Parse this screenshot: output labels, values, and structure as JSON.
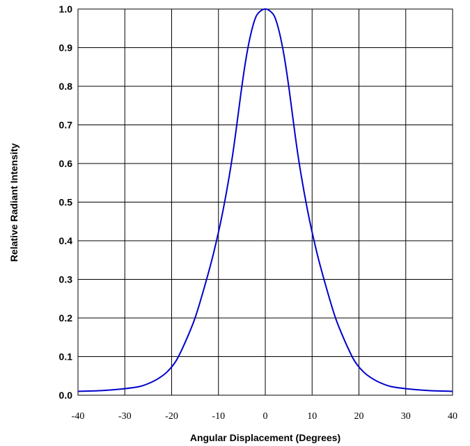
{
  "chart_data": {
    "type": "line",
    "xlabel": "Angular Displacement (Degrees)",
    "ylabel": "Relative Radiant Intensity",
    "xlim": [
      -40,
      40
    ],
    "ylim": [
      0,
      1.0
    ],
    "xticks": [
      "-40",
      "-30",
      "-20",
      "-10",
      "0",
      "10",
      "20",
      "30",
      "40"
    ],
    "yticks": [
      "0.0",
      "0.1",
      "0.2",
      "0.3",
      "0.4",
      "0.5",
      "0.6",
      "0.7",
      "0.8",
      "0.9",
      "1.0"
    ],
    "grid": true,
    "series": [
      {
        "color": "#0000cc",
        "x": [
          -40,
          -35,
          -30,
          -27,
          -25,
          -23,
          -21,
          -19,
          -17,
          -15,
          -13,
          -11,
          -9,
          -7,
          -5,
          -4,
          -3,
          -2,
          -1,
          0,
          1,
          2,
          3,
          4,
          5,
          7,
          9,
          11,
          13,
          15,
          17,
          19,
          21,
          23,
          25,
          27,
          30,
          35,
          40
        ],
        "y": [
          0.01,
          0.012,
          0.017,
          0.022,
          0.03,
          0.042,
          0.06,
          0.09,
          0.14,
          0.2,
          0.28,
          0.37,
          0.48,
          0.62,
          0.8,
          0.88,
          0.94,
          0.98,
          0.995,
          1.0,
          0.995,
          0.98,
          0.94,
          0.88,
          0.8,
          0.62,
          0.48,
          0.37,
          0.28,
          0.2,
          0.14,
          0.09,
          0.06,
          0.042,
          0.03,
          0.022,
          0.017,
          0.012,
          0.01
        ]
      }
    ]
  }
}
